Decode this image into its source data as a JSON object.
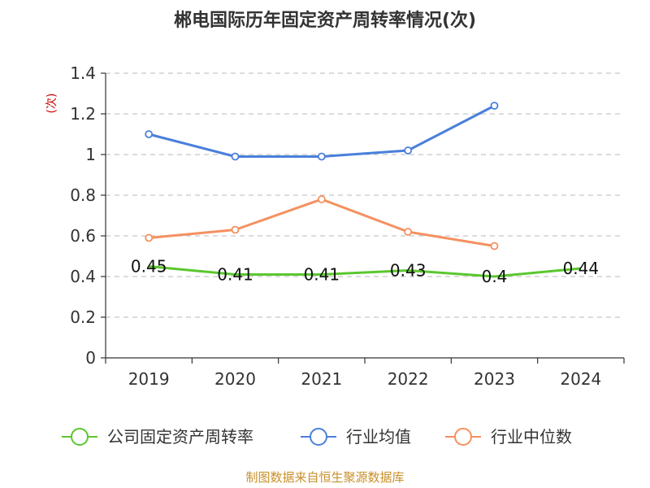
{
  "chart_data": {
    "type": "line",
    "title": "郴电国际历年固定资产周转率情况(次)",
    "ylabel": "(次)",
    "xlabel": "",
    "categories": [
      "2019",
      "2020",
      "2021",
      "2022",
      "2023",
      "2024"
    ],
    "ylim": [
      0,
      1.4
    ],
    "yticks": [
      0,
      0.2,
      0.4,
      0.6,
      0.8,
      1,
      1.2,
      1.4
    ],
    "ytick_labels": [
      "0",
      "0.2",
      "0.4",
      "0.6",
      "0.8",
      "1",
      "1.2",
      "1.4"
    ],
    "grid": true,
    "legend_position": "bottom",
    "series": [
      {
        "name": "公司固定资产周转率",
        "color": "#5ac72e",
        "values": [
          0.45,
          0.41,
          0.41,
          0.43,
          0.4,
          0.44
        ],
        "labels": [
          "0.45",
          "0.41",
          "0.41",
          "0.43",
          "0.4",
          "0.44"
        ],
        "show_labels": true,
        "show_markers": false
      },
      {
        "name": "行业均值",
        "color": "#4a7fdb",
        "values": [
          1.1,
          0.99,
          0.99,
          1.02,
          1.24,
          null
        ],
        "show_labels": false,
        "show_markers": true
      },
      {
        "name": "行业中位数",
        "color": "#f59060",
        "values": [
          0.59,
          0.63,
          0.78,
          0.62,
          0.55,
          null
        ],
        "show_labels": false,
        "show_markers": true
      }
    ],
    "source": "制图数据来自恒生聚源数据库"
  }
}
